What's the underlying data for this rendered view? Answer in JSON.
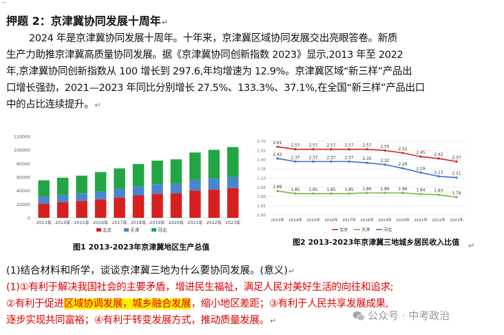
{
  "header": {
    "title": "押题 2：京津冀协同发展十周年"
  },
  "paragraph": {
    "lines": [
      "2024 年是京津冀协同发展十周年。十年来，京津冀区域协同发展交出亮眼答卷。新质",
      "生产力助推京津冀高质量协同发展。据《京津冀协同创新指数 2023》显示,2013 年至 2022",
      "年,京津冀协同创新指数从 100 增长到 297.6,年均增速为 12.9%。京津冀区域“新三样”产品出",
      "口增长强劲，2021—2023 年同比分别增长 27.5%、133.3%、37.1%,在全国“新三样”产品出口",
      "中的占比连续提升。"
    ]
  },
  "chart_data": [
    {
      "type": "bar",
      "stacked": true,
      "categories": [
        "2013年",
        "2014年",
        "2015年",
        "2016年",
        "2017年",
        "2018年",
        "2019年",
        "2020年",
        "2021年",
        "2022年",
        "2023年"
      ],
      "series": [
        {
          "name": "北京",
          "values": [
            21000,
            22900,
            24800,
            27000,
            29900,
            33100,
            35400,
            36100,
            40300,
            41600,
            43800
          ]
        },
        {
          "name": "天津",
          "values": [
            10400,
            11000,
            11500,
            11800,
            12400,
            13400,
            14100,
            14000,
            15700,
            16300,
            16700
          ]
        },
        {
          "name": "河北",
          "values": [
            24000,
            25300,
            25900,
            28700,
            30600,
            32800,
            34900,
            36200,
            40400,
            42400,
            43900
          ]
        }
      ],
      "ylim": [
        0,
        120000
      ],
      "yticks": [
        "0",
        "20000",
        "40000",
        "60000",
        "80000",
        "100000",
        "120000"
      ],
      "legend_position": "bottom",
      "caption": "图1 2013-2023年京津冀地区生产总值",
      "colors": {
        "北京": "#d6201f",
        "天津": "#4a86d0",
        "河北": "#22a644"
      }
    },
    {
      "type": "line",
      "x": [
        "2013年",
        "2014年",
        "2015年",
        "2016年",
        "2017年",
        "2018年",
        "2019年",
        "2020年",
        "2021年",
        "2022年",
        "2023年"
      ],
      "series": [
        {
          "name": "北京",
          "values": [
            2.61,
            2.57,
            2.57,
            2.57,
            2.57,
            2.57,
            2.55,
            2.51,
            2.45,
            2.42,
            2.37
          ]
        },
        {
          "name": "天津",
          "values": [
            1.89,
            1.85,
            1.85,
            1.85,
            1.85,
            1.86,
            1.86,
            1.86,
            1.84,
            1.83,
            1.79
          ]
        },
        {
          "name": "河北",
          "values": [
            2.42,
            2.37,
            2.37,
            2.37,
            2.37,
            2.35,
            2.32,
            2.26,
            2.19,
            2.13,
            2.11
          ]
        }
      ],
      "ylim": [
        1.5,
        2.8
      ],
      "yticks": [
        "1.50",
        "1.65",
        "1.80",
        "1.95",
        "2.10",
        "2.25",
        "2.40",
        "2.55",
        "2.70"
      ],
      "grid": true,
      "legend_position": "bottom",
      "caption": "图2 2013-2023年京津冀三地城乡居民收入比值",
      "colors": {
        "北京": "#d6201f",
        "天津": "#7cb342",
        "河北": "#3b6fcb"
      }
    }
  ],
  "question": {
    "text": "(1)结合材料和所学，谈谈京津冀三地为什么要协同发展。(意义)"
  },
  "answer": {
    "line1": "(1)①有利于解决我国社会的主要矛盾，增进民生福祉，满足人民对美好生活的向往和追求;",
    "line2_pre": "②有利于促进",
    "line2_highlight": "区域协调发展，城乡融合发展",
    "line2_post": "，缩小地区差距；③有利于人民共享发展成果,",
    "line3": "逐步实现共同富裕；④有利于转变发展方式，推动质量发展。"
  },
  "watermark": {
    "text": "公众号 · 中考政治"
  },
  "marks": {
    "return_symbol": "↵",
    "corner": "⌐"
  }
}
